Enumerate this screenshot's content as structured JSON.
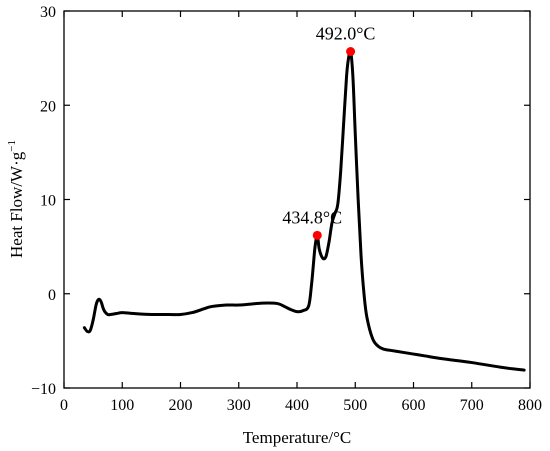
{
  "chart_data": {
    "type": "line",
    "xlabel": "Temperature/°C",
    "ylabel": "Heat Flow/W·g",
    "ylabel_superscript": "−1",
    "xlim": [
      0,
      800
    ],
    "ylim": [
      -10,
      30
    ],
    "x_ticks": [
      0,
      100,
      200,
      300,
      400,
      500,
      600,
      700,
      800
    ],
    "y_ticks": [
      -10,
      0,
      10,
      20,
      30
    ],
    "x_tick_labels": [
      "0",
      "100",
      "200",
      "300",
      "400",
      "500",
      "600",
      "700",
      "800"
    ],
    "y_tick_labels": [
      "−10",
      "0",
      "10",
      "20",
      "30"
    ],
    "grid": false,
    "line_color": "#000000",
    "marker_color": "#ff0000",
    "series": [
      {
        "x": [
          35,
          40,
          45,
          50,
          55,
          58,
          61,
          64,
          67,
          70,
          75,
          80,
          90,
          100,
          120,
          150,
          180,
          200,
          220,
          240,
          250,
          260,
          280,
          300,
          320,
          340,
          360,
          370,
          380,
          390,
          400,
          410,
          420,
          425,
          428,
          431,
          434.8,
          438,
          442,
          446,
          450,
          455,
          460,
          465,
          470,
          475,
          480,
          485,
          488,
          492,
          496,
          500,
          505,
          510,
          515,
          520,
          530,
          540,
          550,
          560,
          580,
          600,
          620,
          650,
          700,
          750,
          790
        ],
        "y": [
          -3.6,
          -4.0,
          -3.9,
          -2.8,
          -1.2,
          -0.7,
          -0.6,
          -0.9,
          -1.5,
          -1.9,
          -2.2,
          -2.2,
          -2.1,
          -2.0,
          -2.1,
          -2.2,
          -2.2,
          -2.2,
          -2.0,
          -1.6,
          -1.4,
          -1.3,
          -1.2,
          -1.2,
          -1.1,
          -1.0,
          -1.0,
          -1.1,
          -1.4,
          -1.7,
          -1.9,
          -1.8,
          -1.3,
          1.0,
          3.0,
          5.0,
          6.2,
          4.8,
          4.0,
          3.7,
          4.0,
          5.5,
          7.5,
          8.5,
          9.5,
          13.0,
          18.0,
          23.0,
          24.8,
          25.7,
          23.0,
          17.0,
          10.0,
          4.0,
          0.0,
          -2.5,
          -4.8,
          -5.6,
          -5.9,
          -6.0,
          -6.2,
          -6.4,
          -6.6,
          -6.9,
          -7.3,
          -7.8,
          -8.1
        ]
      }
    ],
    "peaks": [
      {
        "x": 434.8,
        "y": 6.2,
        "label": "434.8°C"
      },
      {
        "x": 492.0,
        "y": 25.7,
        "label": "492.0°C"
      }
    ]
  }
}
